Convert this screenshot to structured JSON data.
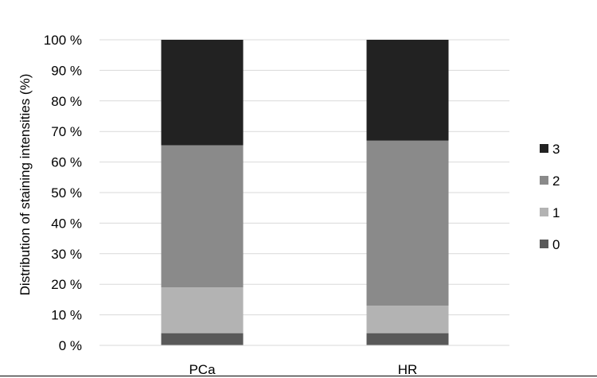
{
  "chart_data": {
    "type": "bar",
    "stacked": true,
    "normalized_percent": true,
    "categories": [
      "PCa",
      "HR"
    ],
    "series": [
      {
        "name": "0",
        "values": [
          4,
          4
        ],
        "color": "#595959"
      },
      {
        "name": "1",
        "values": [
          15,
          9
        ],
        "color": "#b3b3b3"
      },
      {
        "name": "2",
        "values": [
          46.5,
          54
        ],
        "color": "#8a8a8a"
      },
      {
        "name": "3",
        "values": [
          34.5,
          33
        ],
        "color": "#222222"
      }
    ],
    "title": "",
    "xlabel": "",
    "ylabel": "Distribution of staining intensities (%)",
    "ylim": [
      0,
      100
    ],
    "yticks": [
      "0 %",
      "10 %",
      "20 %",
      "30 %",
      "40 %",
      "50 %",
      "60 %",
      "70 %",
      "80 %",
      "90 %",
      "100 %"
    ],
    "grid": true,
    "legend": "right",
    "legend_order": [
      "3",
      "2",
      "1",
      "0"
    ]
  }
}
